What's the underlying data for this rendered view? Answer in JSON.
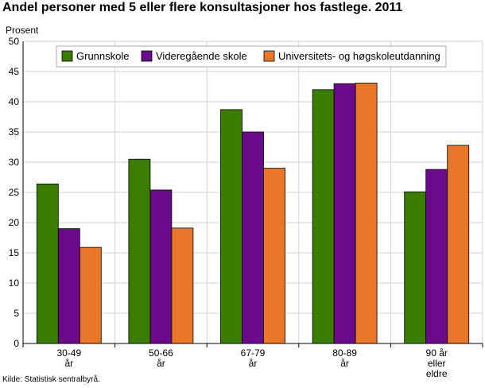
{
  "title": "Andel personer med 5 eller flere konsultasjoner hos fastlege. 2011",
  "source": "Kilde: Statistisk sentralbyrå.",
  "chart_data": {
    "type": "bar",
    "title": "Andel personer med 5 eller flere konsultasjoner hos fastlege. 2011",
    "ylabel": "Prosent",
    "xlabel": "",
    "ylim": [
      0,
      50
    ],
    "ytick_step": 5,
    "grid": true,
    "legend_placement": "top",
    "categories": [
      [
        "30-49",
        "år"
      ],
      [
        "50-66",
        "år"
      ],
      [
        "67-79",
        "år"
      ],
      [
        "80-89",
        "år"
      ],
      [
        "90 år",
        "eller",
        "eldre"
      ]
    ],
    "series": [
      {
        "name": "Grunnskole",
        "color": "#3a7d00",
        "values": [
          26.4,
          30.5,
          38.7,
          42.0,
          25.1
        ]
      },
      {
        "name": "Videregående skole",
        "color": "#6b0a8a",
        "values": [
          19.0,
          25.4,
          35.0,
          43.0,
          28.8
        ]
      },
      {
        "name": "Universitets- og høgskoleutdanning",
        "color": "#e8772a",
        "values": [
          15.9,
          19.1,
          29.0,
          43.1,
          32.8
        ]
      }
    ]
  }
}
